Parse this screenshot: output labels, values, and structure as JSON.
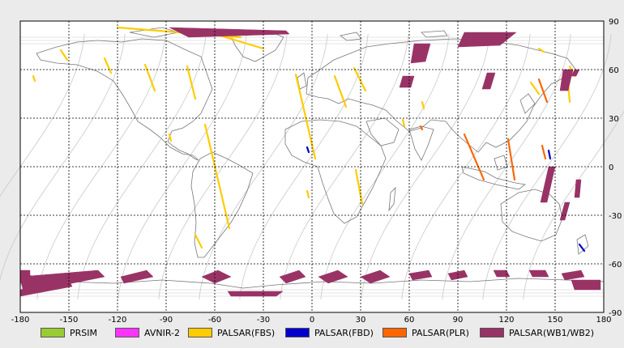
{
  "map": {
    "x_ticks": [
      -180,
      -150,
      -120,
      -90,
      -60,
      -30,
      0,
      30,
      60,
      90,
      120,
      150,
      180
    ],
    "y_ticks": [
      90,
      60,
      30,
      0,
      -30,
      -60,
      -90
    ],
    "x_range": [
      -180,
      180
    ],
    "y_range": [
      -90,
      90
    ],
    "grid": "dashed",
    "background_color": "#ffffff",
    "frame_color": "#ebebeb",
    "coastline_color": "#777777",
    "orbit_color": "#c8c8c8"
  },
  "legend": [
    {
      "label": "PRSIM",
      "color": "#99cc33"
    },
    {
      "label": "AVNIR-2",
      "color": "#ff33ff"
    },
    {
      "label": "PALSAR(FBS)",
      "color": "#ffcc00"
    },
    {
      "label": "PALSAR(FBD)",
      "color": "#0000cc"
    },
    {
      "label": "PALSAR(PLR)",
      "color": "#ff6600"
    },
    {
      "label": "PALSAR(WB1/WB2)",
      "color": "#993366"
    }
  ],
  "chart_data": {
    "type": "scatter",
    "x_range": [
      -180,
      180
    ],
    "y_range": [
      -90,
      90
    ],
    "series": [
      {
        "name": "PALSAR(FBS)",
        "color": "#ffcc00",
        "strips": [
          [
            [
              -155,
              72
            ],
            [
              -151,
              66
            ]
          ],
          [
            [
              -128,
              67
            ],
            [
              -124,
              58
            ]
          ],
          [
            [
              -103,
              63
            ],
            [
              -97,
              47
            ]
          ],
          [
            [
              -77,
              62
            ],
            [
              -72,
              42
            ]
          ],
          [
            [
              -66,
              26
            ],
            [
              -51,
              -38
            ]
          ],
          [
            [
              -10,
              57
            ],
            [
              2,
              5
            ]
          ],
          [
            [
              14,
              56
            ],
            [
              21,
              37
            ]
          ],
          [
            [
              26,
              61
            ],
            [
              33,
              47
            ]
          ],
          [
            [
              27,
              -2
            ],
            [
              31,
              -23
            ]
          ],
          [
            [
              -72,
              -42
            ],
            [
              -68,
              -50
            ]
          ],
          [
            [
              -120,
              86
            ],
            [
              -44,
              80
            ]
          ],
          [
            [
              -60,
              82
            ],
            [
              -30,
              73
            ]
          ],
          [
            [
              140,
              73
            ],
            [
              143,
              71
            ]
          ],
          [
            [
              135,
              52
            ],
            [
              140,
              45
            ]
          ],
          [
            [
              159,
              62
            ],
            [
              162,
              56
            ]
          ],
          [
            [
              158,
              52
            ],
            [
              159,
              40
            ]
          ],
          [
            [
              -172,
              56
            ],
            [
              -171,
              53
            ]
          ],
          [
            [
              -88,
              20
            ],
            [
              -87,
              16
            ]
          ],
          [
            [
              68,
              40
            ],
            [
              69,
              36
            ]
          ],
          [
            [
              56,
              29
            ],
            [
              57,
              25
            ]
          ],
          [
            [
              -3,
              -15
            ],
            [
              -2,
              -19
            ]
          ]
        ]
      },
      {
        "name": "PALSAR(FBD)",
        "color": "#0000cc",
        "strips": [
          [
            [
              146,
              10
            ],
            [
              147,
              5
            ]
          ],
          [
            [
              165,
              -48
            ],
            [
              168,
              -52
            ]
          ],
          [
            [
              -3,
              12
            ],
            [
              -2,
              9
            ]
          ]
        ]
      },
      {
        "name": "PALSAR(PLR)",
        "color": "#ff6600",
        "strips": [
          [
            [
              140,
              54
            ],
            [
              145,
              40
            ]
          ],
          [
            [
              94,
              20
            ],
            [
              106,
              -8
            ]
          ],
          [
            [
              121,
              17
            ],
            [
              125,
              -8
            ]
          ],
          [
            [
              142,
              13
            ],
            [
              144,
              5
            ]
          ],
          [
            [
              67,
              25
            ],
            [
              68,
              23
            ]
          ]
        ]
      },
      {
        "name": "PALSAR(WB1/WB2)",
        "color": "#993366",
        "polys": [
          [
            [
              -88,
              86
            ],
            [
              -16,
              84
            ],
            [
              -14,
              82
            ],
            [
              -76,
              80
            ]
          ],
          [
            [
              94,
              83
            ],
            [
              126,
              83
            ],
            [
              116,
              75
            ],
            [
              90,
              74
            ]
          ],
          [
            [
              63,
              76
            ],
            [
              73,
              76
            ],
            [
              70,
              65
            ],
            [
              61,
              64
            ]
          ],
          [
            [
              108,
              58
            ],
            [
              113,
              58
            ],
            [
              110,
              48
            ],
            [
              105,
              48
            ]
          ],
          [
            [
              155,
              60
            ],
            [
              161,
              60
            ],
            [
              158,
              47
            ],
            [
              153,
              47
            ]
          ],
          [
            [
              162,
              60
            ],
            [
              165,
              60
            ],
            [
              163,
              56
            ],
            [
              160,
              56
            ]
          ],
          [
            [
              56,
              56
            ],
            [
              63,
              56
            ],
            [
              61,
              49
            ],
            [
              54,
              49
            ]
          ],
          [
            [
              146,
              0
            ],
            [
              150,
              0
            ],
            [
              145,
              -22
            ],
            [
              141,
              -22
            ]
          ],
          [
            [
              156,
              -22
            ],
            [
              159,
              -22
            ],
            [
              156,
              -33
            ],
            [
              153,
              -33
            ]
          ],
          [
            [
              163,
              -8
            ],
            [
              166,
              -8
            ],
            [
              165,
              -19
            ],
            [
              162,
              -19
            ]
          ],
          [
            [
              -180,
              -64
            ],
            [
              -174,
              -64
            ],
            [
              -174,
              -72
            ],
            [
              -180,
              -72
            ]
          ],
          [
            [
              -180,
              -68
            ],
            [
              -132,
              -64
            ],
            [
              -128,
              -68
            ],
            [
              -178,
              -78
            ]
          ],
          [
            [
              -180,
              -76
            ],
            [
              -150,
              -70
            ],
            [
              -148,
              -74
            ],
            [
              -180,
              -80
            ]
          ],
          [
            [
              -118,
              -68
            ],
            [
              -102,
              -64
            ],
            [
              -98,
              -68
            ],
            [
              -116,
              -72
            ]
          ],
          [
            [
              -68,
              -68
            ],
            [
              -58,
              -64
            ],
            [
              -50,
              -68
            ],
            [
              -60,
              -72
            ]
          ],
          [
            [
              -52,
              -77
            ],
            [
              -18,
              -77
            ],
            [
              -22,
              -80
            ],
            [
              -50,
              -80
            ]
          ],
          [
            [
              -20,
              -68
            ],
            [
              -8,
              -64
            ],
            [
              -4,
              -68
            ],
            [
              -16,
              -72
            ]
          ],
          [
            [
              4,
              -68
            ],
            [
              16,
              -64
            ],
            [
              22,
              -68
            ],
            [
              10,
              -72
            ]
          ],
          [
            [
              30,
              -68
            ],
            [
              42,
              -64
            ],
            [
              48,
              -68
            ],
            [
              36,
              -72
            ]
          ],
          [
            [
              60,
              -66
            ],
            [
              72,
              -64
            ],
            [
              74,
              -68
            ],
            [
              62,
              -70
            ]
          ],
          [
            [
              84,
              -66
            ],
            [
              94,
              -64
            ],
            [
              96,
              -68
            ],
            [
              86,
              -70
            ]
          ],
          [
            [
              112,
              -64
            ],
            [
              120,
              -64
            ],
            [
              122,
              -68
            ],
            [
              114,
              -68
            ]
          ],
          [
            [
              134,
              -64
            ],
            [
              144,
              -64
            ],
            [
              146,
              -68
            ],
            [
              136,
              -68
            ]
          ],
          [
            [
              154,
              -66
            ],
            [
              166,
              -64
            ],
            [
              168,
              -68
            ],
            [
              156,
              -70
            ]
          ],
          [
            [
              160,
              -70
            ],
            [
              178,
              -70
            ],
            [
              178,
              -76
            ],
            [
              162,
              -76
            ]
          ],
          [
            [
              -180,
              -70
            ],
            [
              -176,
              -66
            ],
            [
              -168,
              -70
            ],
            [
              -178,
              -74
            ]
          ]
        ]
      }
    ]
  }
}
